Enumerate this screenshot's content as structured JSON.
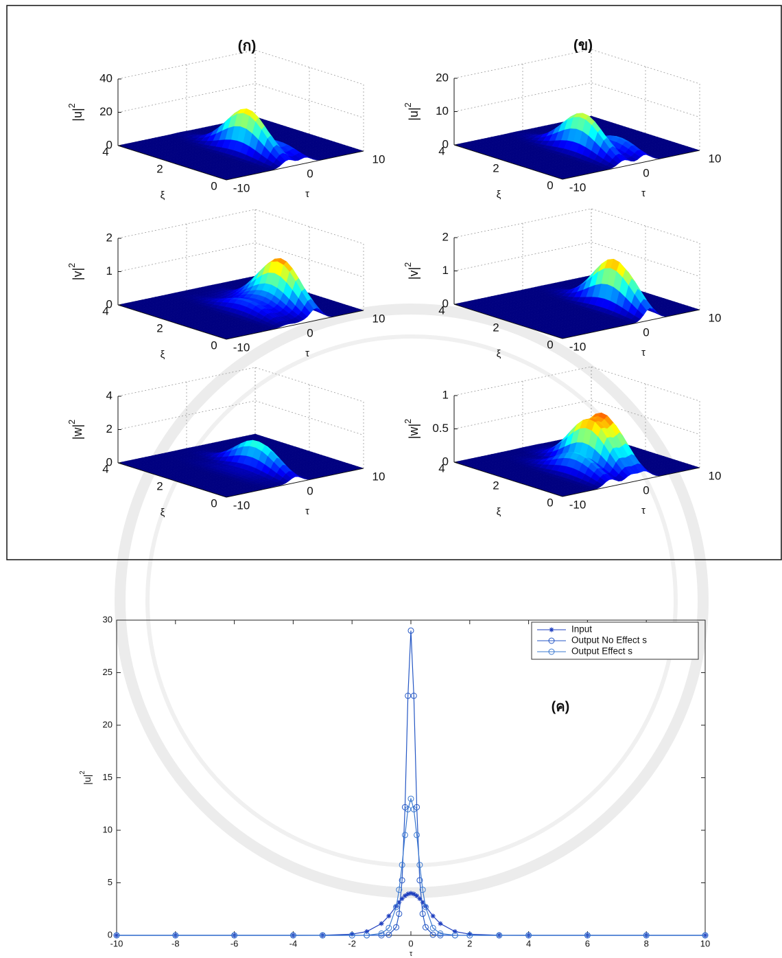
{
  "chart_data": [
    {
      "type": "surface",
      "title": "(ก)",
      "zlabel": "|u|",
      "zlabel_sup": "2",
      "xlabel": "τ",
      "ylabel": "ξ",
      "xlim": [
        -10,
        10
      ],
      "xticks": [
        -10,
        0,
        10
      ],
      "ylim": [
        0,
        4
      ],
      "yticks": [
        0,
        2,
        4
      ],
      "zlim": [
        0,
        40
      ],
      "zticks": [
        0,
        20,
        40
      ],
      "peaks": [
        {
          "tau": -1,
          "xi": 1.5,
          "height": 27
        },
        {
          "tau": 1.5,
          "xi": 1,
          "height": 8
        }
      ]
    },
    {
      "type": "surface",
      "title": "(ข)",
      "zlabel": "|u|",
      "zlabel_sup": "2",
      "xlabel": "τ",
      "ylabel": "ξ",
      "xlim": [
        -10,
        10
      ],
      "xticks": [
        -10,
        0,
        10
      ],
      "ylim": [
        0,
        4
      ],
      "yticks": [
        0,
        2,
        4
      ],
      "zlim": [
        0,
        20
      ],
      "zticks": [
        0,
        10,
        20
      ],
      "peaks": [
        {
          "tau": -1,
          "xi": 1.5,
          "height": 12
        },
        {
          "tau": 2,
          "xi": 1,
          "height": 5
        }
      ]
    },
    {
      "type": "surface",
      "zlabel": "|v|",
      "zlabel_sup": "2",
      "xlabel": "τ",
      "ylabel": "ξ",
      "xlim": [
        -10,
        10
      ],
      "xticks": [
        -10,
        0,
        10
      ],
      "ylim": [
        0,
        4
      ],
      "yticks": [
        0,
        2,
        4
      ],
      "zlim": [
        0,
        2
      ],
      "zticks": [
        0,
        1,
        2
      ],
      "peaks": [
        {
          "tau": -1.1,
          "xi": 1.5,
          "height": 0.4
        },
        {
          "tau": 1.2,
          "xi": 1.5,
          "height": 0.4
        },
        {
          "tau": 3.1,
          "xi": 1.3,
          "height": 1.5
        }
      ]
    },
    {
      "type": "surface",
      "zlabel": "|v|",
      "zlabel_sup": "2",
      "xlabel": "τ",
      "ylabel": "ξ",
      "xlim": [
        -10,
        10
      ],
      "xticks": [
        -10,
        0,
        10
      ],
      "ylim": [
        0,
        4
      ],
      "yticks": [
        0,
        2,
        4
      ],
      "zlim": [
        0,
        2
      ],
      "zticks": [
        0,
        1,
        2
      ],
      "peaks": [
        {
          "tau": 2.8,
          "xi": 1.3,
          "height": 1.5
        }
      ]
    },
    {
      "type": "surface",
      "zlabel": "|w|",
      "zlabel_sup": "2",
      "xlabel": "τ",
      "ylabel": "ξ",
      "xlim": [
        -10,
        10
      ],
      "xticks": [
        -10,
        0,
        10
      ],
      "ylim": [
        0,
        4
      ],
      "yticks": [
        0,
        2,
        4
      ],
      "zlim": [
        0,
        4
      ],
      "zticks": [
        0,
        2,
        4
      ],
      "peaks": [
        {
          "tau": -2.8,
          "xi": 1.5,
          "height": 0.2
        },
        {
          "tau": 0.1,
          "xi": 1.4,
          "height": 1.8
        }
      ]
    },
    {
      "type": "surface",
      "zlabel": "|w|",
      "zlabel_sup": "2",
      "xlabel": "τ",
      "ylabel": "ξ",
      "xlim": [
        -10,
        10
      ],
      "xticks": [
        -10,
        0,
        10
      ],
      "ylim": [
        0,
        4
      ],
      "yticks": [
        0,
        2,
        4
      ],
      "zlim": [
        0,
        1
      ],
      "zticks": [
        0,
        0.5,
        1
      ],
      "peaks": [
        {
          "tau": -3,
          "xi": 1.2,
          "height": 0.35
        },
        {
          "tau": 0,
          "xi": 1.5,
          "height": 0.7
        },
        {
          "tau": 2,
          "xi": 1.5,
          "height": 0.75
        }
      ]
    },
    {
      "type": "line",
      "annotation": "(ค)",
      "xlabel": "τ",
      "ylabel": "|u|",
      "ylabel_sup": "2",
      "x": [
        -10,
        -8,
        -6,
        -4,
        -3,
        -2,
        -1.5,
        -1,
        -0.75,
        -0.5,
        -0.4,
        -0.3,
        -0.2,
        -0.1,
        0,
        0.1,
        0.2,
        0.3,
        0.4,
        0.5,
        0.75,
        1,
        1.5,
        2,
        3,
        4,
        6,
        8,
        10
      ],
      "xlim": [
        -10,
        10
      ],
      "xticks": [
        -10,
        -8,
        -6,
        -4,
        -2,
        0,
        2,
        4,
        6,
        8,
        10
      ],
      "ylim": [
        0,
        30
      ],
      "yticks": [
        0,
        5,
        10,
        15,
        20,
        25,
        30
      ],
      "legend": "upper right",
      "series": [
        {
          "name": "Input",
          "color": "#1f3fbf",
          "marker": "*",
          "values": [
            0,
            0,
            0,
            0,
            0.01,
            0.11,
            0.36,
            1.12,
            1.84,
            2.77,
            3.15,
            3.49,
            3.76,
            3.94,
            4,
            3.94,
            3.76,
            3.49,
            3.15,
            2.77,
            1.84,
            1.12,
            0.36,
            0.11,
            0.01,
            0,
            0,
            0,
            0
          ]
        },
        {
          "name": "Output No Effect  s",
          "color": "#2456c4",
          "marker": "o",
          "values": [
            0,
            0,
            0,
            0,
            0,
            0,
            0,
            0,
            0.06,
            0.77,
            2.05,
            5.24,
            12.2,
            22.8,
            29,
            22.8,
            12.2,
            5.24,
            2.05,
            0.77,
            0.06,
            0,
            0,
            0,
            0,
            0,
            0,
            0,
            0
          ]
        },
        {
          "name": "Output Effect  s",
          "color": "#3a78d0",
          "marker": "o",
          "values": [
            0,
            0,
            0,
            0,
            0,
            0,
            0.01,
            0.17,
            0.7,
            2.69,
            4.34,
            6.7,
            9.55,
            12,
            13,
            12,
            9.55,
            6.7,
            4.34,
            2.69,
            0.7,
            0.17,
            0.01,
            0,
            0,
            0,
            0,
            0,
            0
          ]
        }
      ]
    }
  ]
}
